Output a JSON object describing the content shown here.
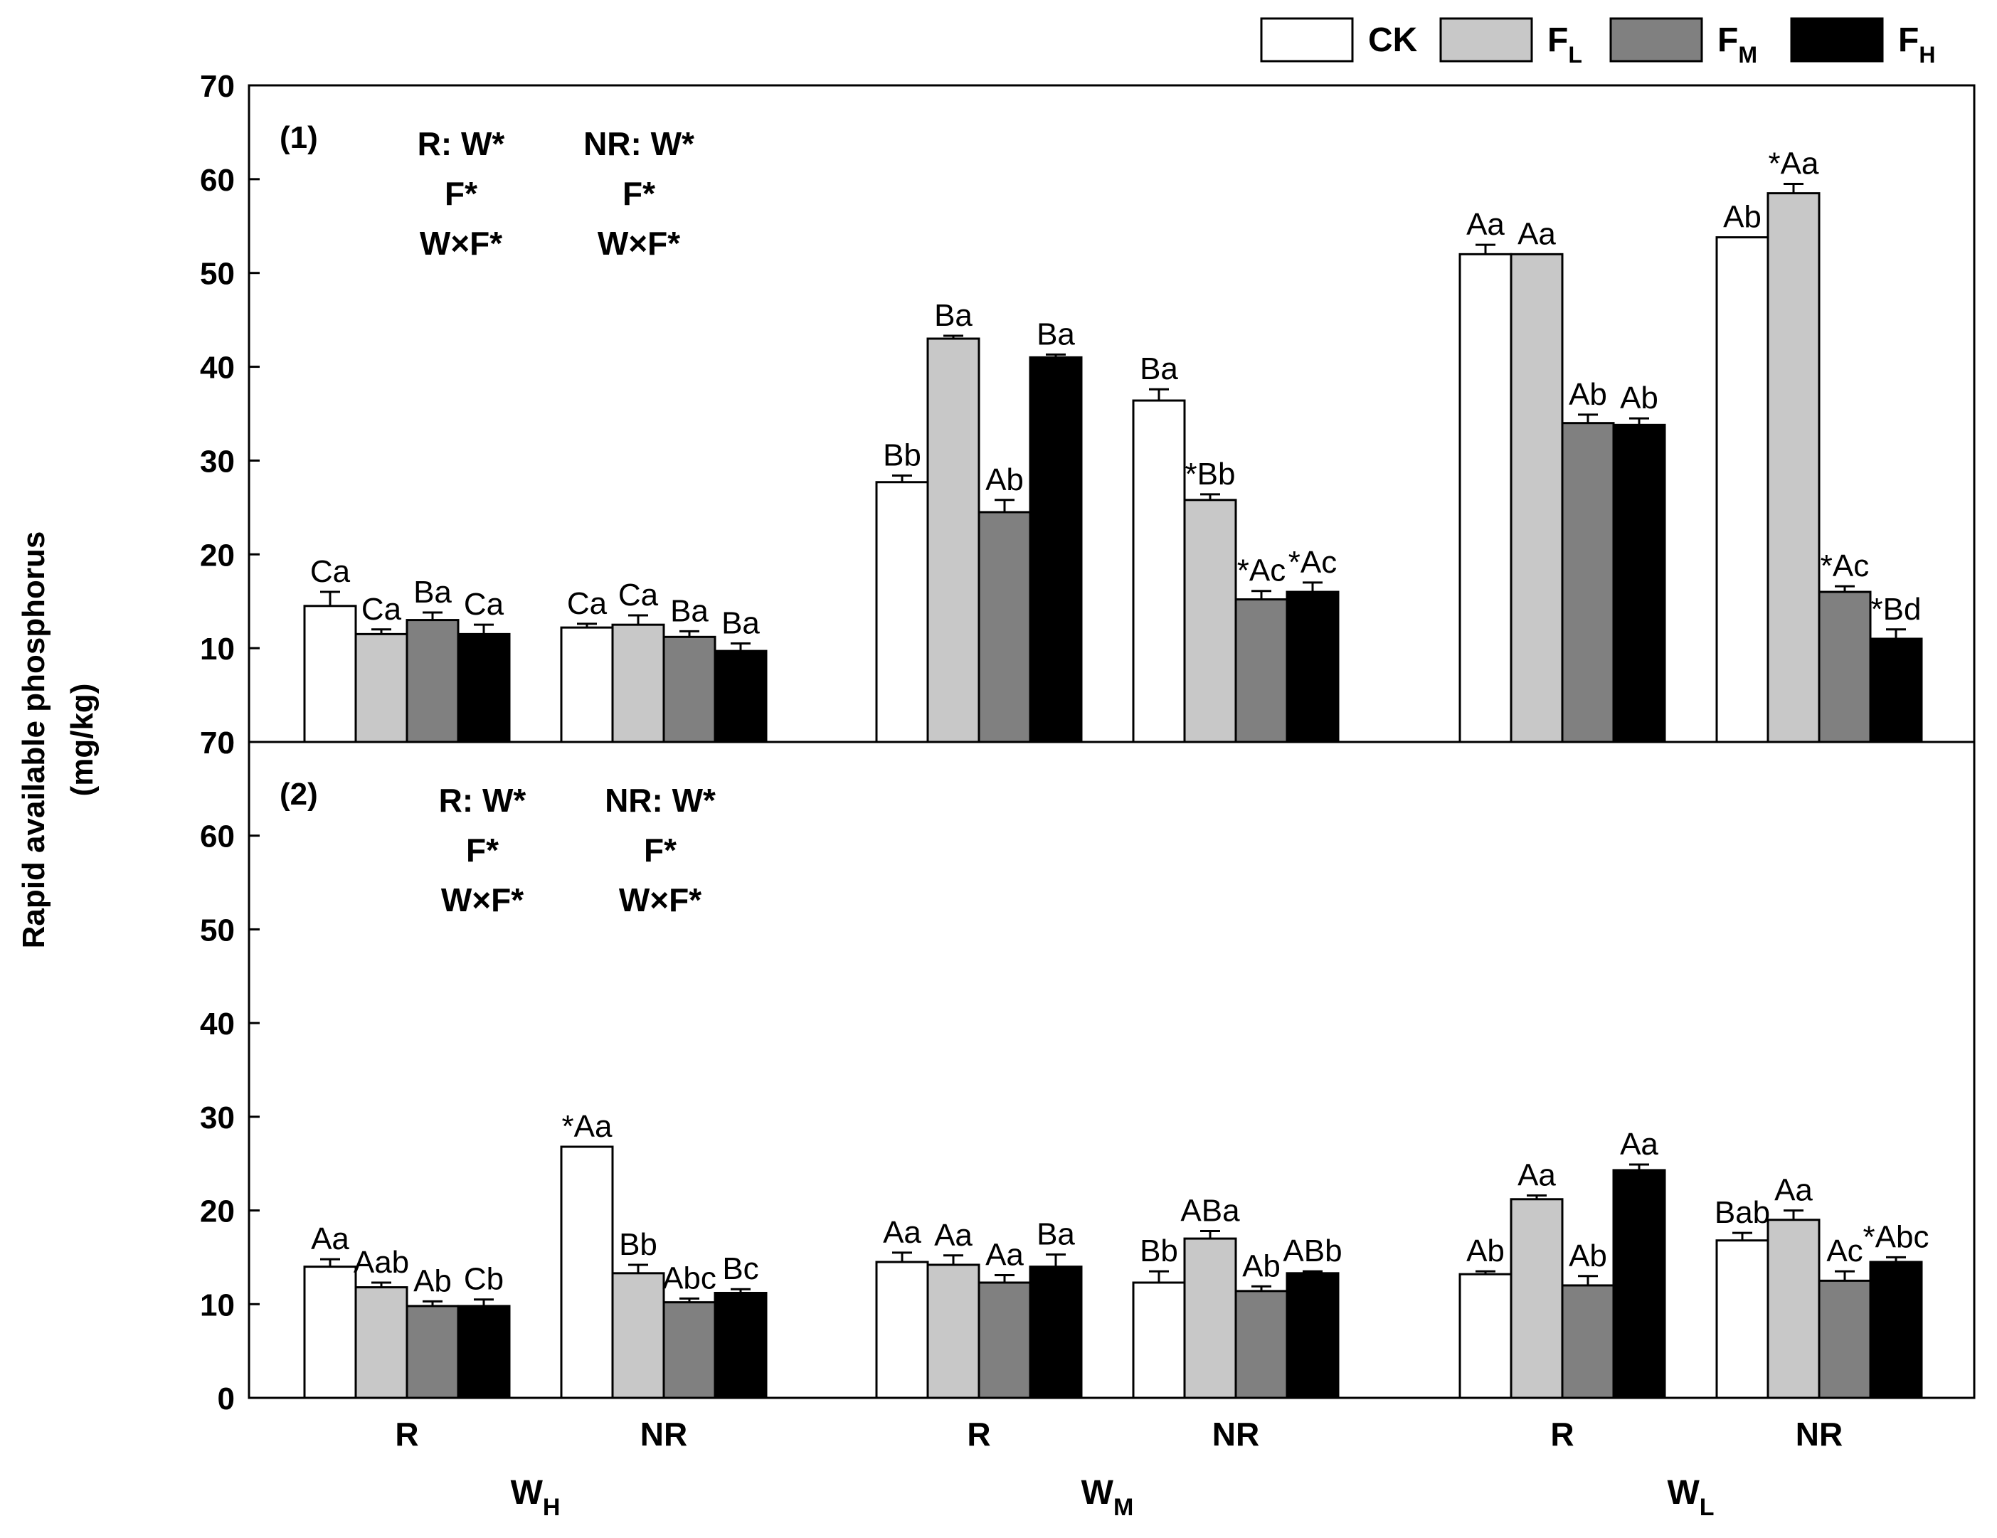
{
  "chart_data": {
    "type": "bar",
    "ylabel_line1": "Rapid available phosphorus",
    "ylabel_line2": "(mg/kg)",
    "legend": [
      {
        "label": "CK",
        "sub": "",
        "color": "#ffffff"
      },
      {
        "label": "F",
        "sub": "L",
        "color": "#c8c8c8"
      },
      {
        "label": "F",
        "sub": "M",
        "color": "#808080"
      },
      {
        "label": "F",
        "sub": "H",
        "color": "#000000"
      }
    ],
    "groups": [
      {
        "tick": "R",
        "main": "W",
        "sub": "H"
      },
      {
        "tick": "NR",
        "main": "",
        "sub": ""
      },
      {
        "tick": "R",
        "main": "W",
        "sub": "M"
      },
      {
        "tick": "NR",
        "main": "",
        "sub": ""
      },
      {
        "tick": "R",
        "main": "W",
        "sub": "L"
      },
      {
        "tick": "NR",
        "main": "",
        "sub": ""
      }
    ],
    "panels": [
      {
        "label": "(1)",
        "ylim": [
          0,
          70
        ],
        "yticks": [
          "10",
          "20",
          "30",
          "40",
          "50",
          "60",
          "70"
        ],
        "stats_left": [
          "R: W*",
          "F*",
          "W×F*"
        ],
        "stats_right": [
          "NR: W*",
          "F*",
          "W×F*"
        ],
        "bars": [
          [
            {
              "v": 14.5,
              "e": 1.5,
              "l": "Ca"
            },
            {
              "v": 11.5,
              "e": 0.5,
              "l": "Ca"
            },
            {
              "v": 13.0,
              "e": 0.8,
              "l": "Ba"
            },
            {
              "v": 11.5,
              "e": 1.0,
              "l": "Ca"
            }
          ],
          [
            {
              "v": 12.2,
              "e": 0.4,
              "l": "Ca"
            },
            {
              "v": 12.5,
              "e": 1.0,
              "l": "Ca"
            },
            {
              "v": 11.2,
              "e": 0.6,
              "l": "Ba"
            },
            {
              "v": 9.7,
              "e": 0.8,
              "l": "Ba"
            }
          ],
          [
            {
              "v": 27.7,
              "e": 0.7,
              "l": "Bb"
            },
            {
              "v": 43.0,
              "e": 0.3,
              "l": "Ba"
            },
            {
              "v": 24.5,
              "e": 1.3,
              "l": "Ab"
            },
            {
              "v": 41.0,
              "e": 0.3,
              "l": "Ba"
            }
          ],
          [
            {
              "v": 36.4,
              "e": 1.2,
              "l": "Ba"
            },
            {
              "v": 25.8,
              "e": 0.6,
              "l": "*Bb"
            },
            {
              "v": 15.2,
              "e": 0.9,
              "l": "*Ac"
            },
            {
              "v": 16.0,
              "e": 1.0,
              "l": "*Ac"
            }
          ],
          [
            {
              "v": 52.0,
              "e": 1.0,
              "l": "Aa"
            },
            {
              "v": 52.0,
              "e": 0.0,
              "l": "Aa"
            },
            {
              "v": 34.0,
              "e": 0.9,
              "l": "Ab"
            },
            {
              "v": 33.8,
              "e": 0.7,
              "l": "Ab"
            }
          ],
          [
            {
              "v": 53.8,
              "e": 0.0,
              "l": "Ab"
            },
            {
              "v": 58.5,
              "e": 1.0,
              "l": "*Aa"
            },
            {
              "v": 16.0,
              "e": 0.6,
              "l": "*Ac"
            },
            {
              "v": 11.0,
              "e": 1.0,
              "l": "*Bd"
            }
          ]
        ]
      },
      {
        "label": "(2)",
        "ylim": [
          0,
          70
        ],
        "yticks": [
          "0",
          "10",
          "20",
          "30",
          "40",
          "50",
          "60",
          "70"
        ],
        "stats_left": [
          "R: W*",
          "F*",
          "W×F*"
        ],
        "stats_right": [
          "NR: W*",
          "F*",
          "W×F*"
        ],
        "bars": [
          [
            {
              "v": 14.0,
              "e": 0.8,
              "l": "Aa"
            },
            {
              "v": 11.8,
              "e": 0.5,
              "l": "Aab"
            },
            {
              "v": 9.8,
              "e": 0.5,
              "l": "Ab"
            },
            {
              "v": 9.8,
              "e": 0.7,
              "l": "Cb"
            }
          ],
          [
            {
              "v": 26.8,
              "e": 0.0,
              "l": "*Aa"
            },
            {
              "v": 13.3,
              "e": 0.9,
              "l": "Bb"
            },
            {
              "v": 10.2,
              "e": 0.4,
              "l": "Abc"
            },
            {
              "v": 11.2,
              "e": 0.4,
              "l": "Bc"
            }
          ],
          [
            {
              "v": 14.5,
              "e": 1.0,
              "l": "Aa"
            },
            {
              "v": 14.2,
              "e": 1.0,
              "l": "Aa"
            },
            {
              "v": 12.3,
              "e": 0.8,
              "l": "Aa"
            },
            {
              "v": 14.0,
              "e": 1.3,
              "l": "Ba"
            }
          ],
          [
            {
              "v": 12.3,
              "e": 1.2,
              "l": "Bb"
            },
            {
              "v": 17.0,
              "e": 0.8,
              "l": "ABa"
            },
            {
              "v": 11.4,
              "e": 0.5,
              "l": "Ab"
            },
            {
              "v": 13.3,
              "e": 0.2,
              "l": "ABb"
            }
          ],
          [
            {
              "v": 13.2,
              "e": 0.3,
              "l": "Ab"
            },
            {
              "v": 21.2,
              "e": 0.4,
              "l": "Aa"
            },
            {
              "v": 12.0,
              "e": 1.0,
              "l": "Ab"
            },
            {
              "v": 24.3,
              "e": 0.6,
              "l": "Aa"
            }
          ],
          [
            {
              "v": 16.8,
              "e": 0.8,
              "l": "Bab"
            },
            {
              "v": 19.0,
              "e": 1.0,
              "l": "Aa"
            },
            {
              "v": 12.5,
              "e": 1.0,
              "l": "Ac"
            },
            {
              "v": 14.5,
              "e": 0.5,
              "l": "*Abc"
            }
          ]
        ]
      }
    ]
  }
}
